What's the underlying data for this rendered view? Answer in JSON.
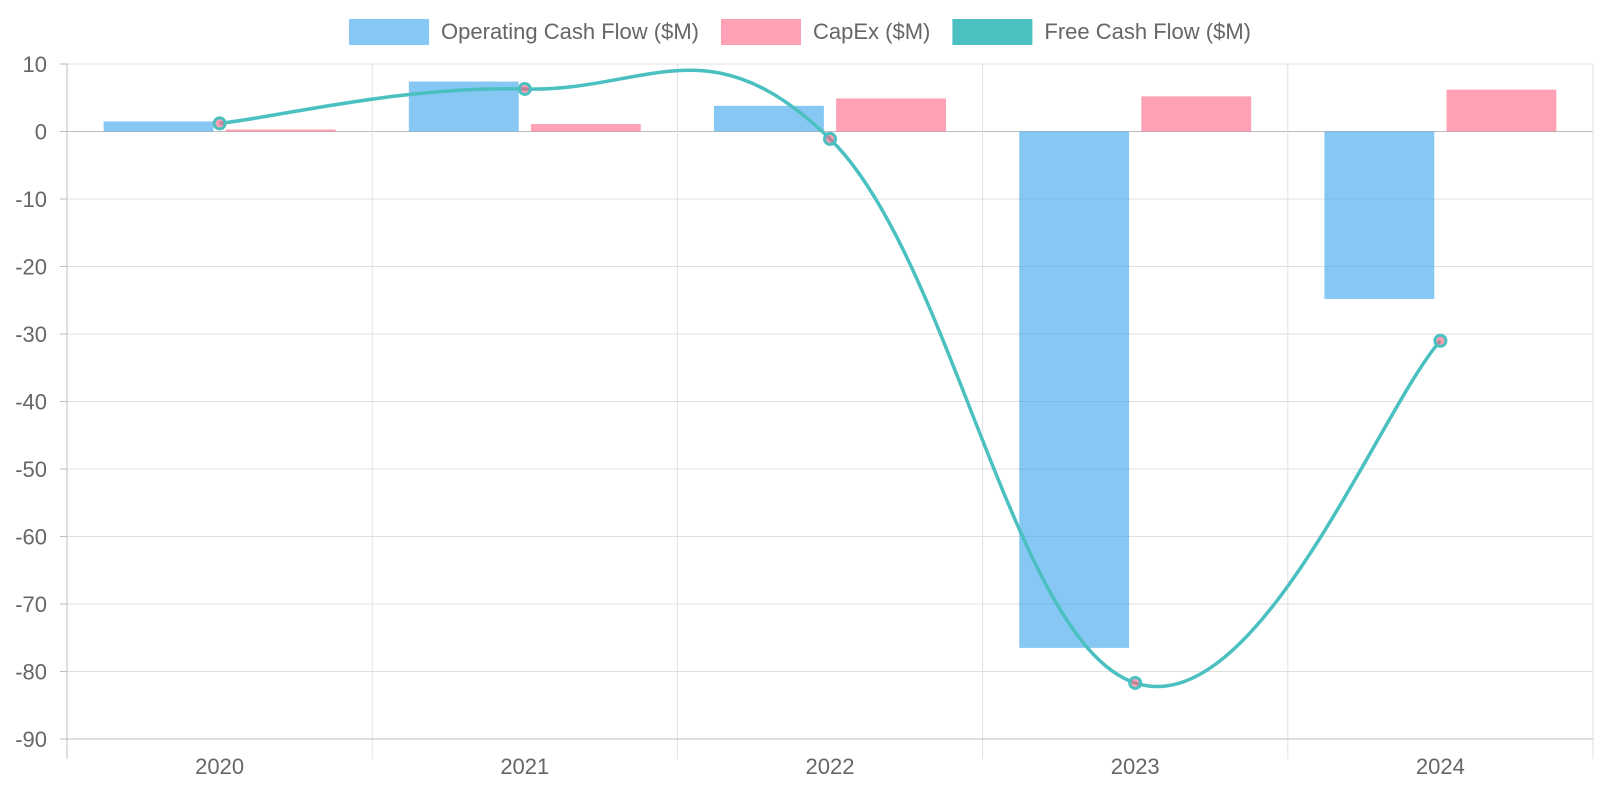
{
  "chart_data": {
    "type": "bar",
    "categories": [
      "2020",
      "2021",
      "2022",
      "2023",
      "2024"
    ],
    "series": [
      {
        "name": "Operating Cash Flow ($M)",
        "type": "bar",
        "color": "#36A2EB",
        "fill": "rgba(54,162,235,0.6)",
        "values": [
          1.5,
          7.4,
          3.8,
          -76.5,
          -24.8
        ]
      },
      {
        "name": "CapEx ($M)",
        "type": "bar",
        "color": "#FF6384",
        "fill": "rgba(255,99,132,0.6)",
        "values": [
          0.3,
          1.1,
          4.9,
          5.2,
          6.2
        ]
      },
      {
        "name": "Free Cash Flow ($M)",
        "type": "line",
        "color": "#4BC0C0",
        "values": [
          1.2,
          6.3,
          -1.1,
          -81.7,
          -31.0
        ]
      }
    ],
    "ylim": [
      -90,
      10
    ],
    "yticks": [
      10,
      0,
      -10,
      -20,
      -30,
      -40,
      -50,
      -60,
      -70,
      -80,
      -90
    ],
    "grid": true,
    "legend_position": "top",
    "title": "",
    "xlabel": "",
    "ylabel": ""
  }
}
